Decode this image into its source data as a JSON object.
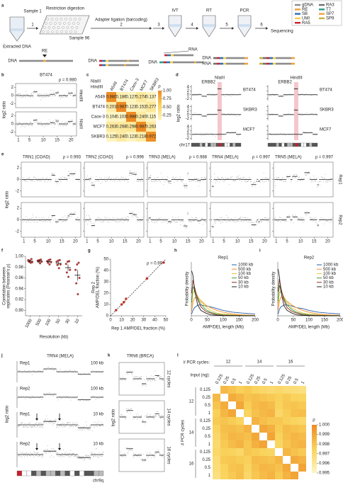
{
  "a": {
    "label": "a",
    "sample1": "Sample 1",
    "sample96": "Sample 96",
    "extracted": "Extracted DNA",
    "re": "RE",
    "dna": "DNA",
    "rna": "RNA",
    "steps": [
      {
        "num": "1",
        "name": "Restriction digestion"
      },
      {
        "num": "2",
        "name": "Adapter ligation (barcoding)"
      },
      {
        "num": "3",
        "name": "IVT"
      },
      {
        "num": "4",
        "name": "RT"
      },
      {
        "num": "5",
        "name": "PCR"
      },
      {
        "num": "6",
        "name": "Sequencing"
      }
    ],
    "legend": [
      {
        "name": "gDNA",
        "color": "#8c8c8c"
      },
      {
        "name": "RE",
        "color": "#e8a33a"
      },
      {
        "name": "SB",
        "color": "#2e6fb5"
      },
      {
        "name": "UMI",
        "color": "#f2d04b"
      },
      {
        "name": "RA5",
        "color": "#c8202e"
      },
      {
        "name": "RA3",
        "color": "#6f6f6f"
      },
      {
        "name": "T7",
        "color": "#2c9b8a"
      },
      {
        "name": "SP7",
        "color": "#f0a33c"
      },
      {
        "name": "SP9",
        "color": "#c4b23b"
      }
    ]
  },
  "b": {
    "label": "b",
    "title": "BT474",
    "rho": "ρ = 0.980",
    "rows": [
      "HindIII",
      "NlaIII"
    ],
    "ylabel": "log2 ratio",
    "xlim": [
      0,
      22
    ],
    "xticks": [
      1,
      5,
      10,
      15,
      20
    ],
    "ylim": [
      -3,
      3
    ],
    "yticks": [
      2,
      0,
      -2
    ]
  },
  "c": {
    "label": "c",
    "col_group": "NlaIII",
    "row_group": "HindIII",
    "names": [
      "A549",
      "BT474",
      "Caov-3",
      "MCF7",
      "SKBR3"
    ],
    "matrix": [
      [
        0.98,
        0.186,
        0.127,
        0.274,
        0.137
      ],
      [
        0.201,
        0.987,
        0.123,
        0.152,
        0.277
      ],
      [
        0.104,
        0.103,
        0.988,
        0.24,
        0.115
      ],
      [
        0.263,
        0.268,
        0.298,
        0.987,
        0.263
      ],
      [
        0.125,
        0.24,
        0.123,
        0.218,
        0.972
      ]
    ],
    "value_labels": [
      [
        "0.980",
        "0.186",
        "0.127",
        "0.274",
        "0.137"
      ],
      [
        "0.201",
        "0.987",
        "0.123",
        "0.152",
        "0.277"
      ],
      [
        "0.104",
        "0.103",
        "0.988",
        "0.240",
        "0.115"
      ],
      [
        "0.263",
        "0.268",
        "0.298",
        "0.987",
        "0.263"
      ],
      [
        "0.125",
        "0.240",
        "0.123",
        "0.218",
        "0.972"
      ]
    ],
    "clim": [
      0.1,
      1
    ],
    "cbar_ticks": [
      {
        "value": 1,
        "label": "1.00"
      },
      0.75,
      {
        "value": 0.5,
        "label": "0.50"
      },
      0.25
    ],
    "cbar_label": "ρ"
  },
  "d": {
    "label": "d",
    "gene": "ERBB2",
    "enzymes": [
      "NlaIII",
      "HindIII"
    ],
    "samples": [
      "BT474",
      "SKBR3",
      "MCF7"
    ],
    "ylabel": "log2 ratio",
    "chrom": "chr17",
    "ylim": [
      -3,
      5
    ],
    "yticks": [
      4,
      2,
      0,
      -2
    ]
  },
  "e": {
    "label": "e",
    "ylabel": "log2 ratio",
    "reps": [
      "Rep1",
      "Rep2"
    ],
    "panels": [
      {
        "title": "TRN1 (COAD)",
        "rho": "ρ = 0.993"
      },
      {
        "title": "TRN2 (COAD)",
        "rho": "ρ = 0.996"
      },
      {
        "title": "TRN3 (MELA)",
        "rho": "ρ = 0.988"
      },
      {
        "title": "TRN4 (MELA)",
        "rho": "ρ = 0.997"
      },
      {
        "title": "TRN5 (MELA)",
        "rho": "ρ = 0.997"
      }
    ],
    "xlim": [
      0,
      22
    ],
    "xticks": [
      1,
      5,
      10,
      15,
      20
    ],
    "ylim": [
      -3,
      3
    ],
    "yticks": [
      2,
      0,
      -2
    ]
  },
  "f": {
    "label": "f",
    "type": "dot",
    "ylabel": [
      "Correlation between",
      "replicates (Pearson's ρ)"
    ],
    "xlabel": "Resolution (kb)",
    "categories": [
      "1000",
      "500",
      "100",
      "50",
      "30",
      "10"
    ],
    "points": [
      [
        0.993,
        0.99,
        0.992,
        0.988,
        0.995,
        0.989
      ],
      [
        0.992,
        0.99,
        0.993,
        0.987,
        0.994,
        0.99
      ],
      [
        0.991,
        0.988,
        0.993,
        0.985,
        0.994,
        0.989
      ],
      [
        0.99,
        0.984,
        0.992,
        0.978,
        0.993,
        0.985
      ],
      [
        0.986,
        0.97,
        0.99,
        0.962,
        0.991,
        0.975
      ],
      [
        0.975,
        0.95,
        0.985,
        0.93,
        0.988,
        0.96
      ]
    ],
    "means": [
      0.991,
      0.991,
      0.99,
      0.987,
      0.979,
      0.965
    ],
    "errors": [
      0.002,
      0.002,
      0.002,
      0.003,
      0.006,
      0.01
    ],
    "ylim": [
      0.89,
      1.0
    ],
    "yticks": [
      {
        "value": 0.9,
        "label": "0.90"
      },
      0.92,
      0.94,
      0.96,
      0.98,
      {
        "value": 1,
        "label": "1.00"
      }
    ],
    "color": "#9b1b1b"
  },
  "g": {
    "label": "g",
    "type": "scatter",
    "xlabel": "Rep 1 AMP/DEL fraction (%)",
    "ylabel": [
      "Rep 2",
      "AMP/DEL fraction (%)"
    ],
    "annotation": "ρ = 0.99",
    "x": [
      5,
      10,
      12,
      14,
      33,
      48
    ],
    "values": [
      5,
      10,
      12,
      15,
      33,
      47
    ],
    "xlim": [
      0,
      50
    ],
    "ylim": [
      0,
      50
    ],
    "xticks": [
      0,
      10,
      20,
      30,
      40,
      50
    ],
    "yticks": [
      0,
      10,
      20,
      30,
      40,
      50
    ],
    "color": "#c0392b"
  },
  "h": {
    "label": "h",
    "type": "line",
    "title": "Rep1",
    "xlabel": "AMP/DEL length (Mb)",
    "ylabel": "Probability density",
    "x": [
      1,
      5,
      10,
      20,
      30,
      45,
      60,
      80,
      100,
      130,
      160,
      200
    ],
    "xlim": [
      0,
      200
    ],
    "xticks": [
      0,
      50,
      100,
      150,
      200
    ],
    "ylim": [
      0,
      0.06
    ],
    "series": [
      {
        "name": "1000 kb",
        "color": "#2a5caa",
        "values": [
          0.002,
          0.006,
          0.009,
          0.012,
          0.012,
          0.011,
          0.01,
          0.008,
          0.006,
          0.004,
          0.003,
          0.002
        ]
      },
      {
        "name": "500 kb",
        "color": "#f28e2b",
        "values": [
          0.005,
          0.015,
          0.02,
          0.02,
          0.017,
          0.012,
          0.009,
          0.006,
          0.004,
          0.002,
          0.001,
          0.0005
        ]
      },
      {
        "name": "100 kb",
        "color": "#e9c232",
        "values": [
          0.01,
          0.025,
          0.028,
          0.022,
          0.016,
          0.01,
          0.006,
          0.003,
          0.002,
          0.001,
          0.0005,
          0.0002
        ]
      },
      {
        "name": "50 kb",
        "color": "#3f9b3f",
        "values": [
          0.015,
          0.032,
          0.03,
          0.02,
          0.013,
          0.007,
          0.004,
          0.002,
          0.001,
          0.0005,
          0.0002,
          0.0001
        ]
      },
      {
        "name": "30 kb",
        "color": "#8b2a1a",
        "values": [
          0.025,
          0.04,
          0.032,
          0.018,
          0.01,
          0.005,
          0.003,
          0.001,
          0.0005,
          0.0002,
          0.0001,
          0
        ]
      },
      {
        "name": "10 kb",
        "color": "#222222",
        "values": [
          0.05,
          0.045,
          0.028,
          0.012,
          0.006,
          0.003,
          0.001,
          0.0005,
          0.0002,
          0.0001,
          0,
          0
        ]
      }
    ]
  },
  "i": {
    "label": "i",
    "type": "line",
    "title": "Rep2",
    "xlabel": "AMP/DEL length (Mb)",
    "ylabel": "Probability density",
    "x": [
      1,
      5,
      10,
      20,
      30,
      45,
      60,
      80,
      100,
      130,
      160,
      200
    ],
    "xlim": [
      0,
      200
    ],
    "xticks": [
      0,
      50,
      100,
      150,
      200
    ],
    "ylim": [
      0,
      0.06
    ],
    "series": [
      {
        "name": "1000 kb",
        "color": "#2a5caa",
        "values": [
          0.002,
          0.007,
          0.01,
          0.012,
          0.012,
          0.011,
          0.009,
          0.008,
          0.006,
          0.004,
          0.003,
          0.002
        ]
      },
      {
        "name": "500 kb",
        "color": "#f28e2b",
        "values": [
          0.006,
          0.016,
          0.021,
          0.019,
          0.016,
          0.012,
          0.009,
          0.006,
          0.004,
          0.002,
          0.001,
          0.0005
        ]
      },
      {
        "name": "100 kb",
        "color": "#e9c232",
        "values": [
          0.011,
          0.026,
          0.027,
          0.021,
          0.015,
          0.009,
          0.006,
          0.003,
          0.002,
          0.001,
          0.0005,
          0.0002
        ]
      },
      {
        "name": "50 kb",
        "color": "#3f9b3f",
        "values": [
          0.016,
          0.034,
          0.029,
          0.019,
          0.012,
          0.007,
          0.004,
          0.002,
          0.001,
          0.0005,
          0.0002,
          0.0001
        ]
      },
      {
        "name": "30 kb",
        "color": "#8b2a1a",
        "values": [
          0.027,
          0.041,
          0.031,
          0.017,
          0.009,
          0.005,
          0.003,
          0.001,
          0.0005,
          0.0002,
          0.0001,
          0
        ]
      },
      {
        "name": "10 kb",
        "color": "#222222",
        "values": [
          0.052,
          0.044,
          0.027,
          0.011,
          0.006,
          0.003,
          0.001,
          0.0005,
          0.0002,
          0.0001,
          0,
          0
        ]
      }
    ]
  },
  "j": {
    "label": "j",
    "title": "TRN4 (MELA)",
    "ylabel": "log2 ratio",
    "tracks": [
      {
        "rep": "Rep1",
        "res": "100 kb"
      },
      {
        "rep": "Rep2",
        "res": "100 kb"
      },
      {
        "rep": "Rep1",
        "res": "10 kb"
      },
      {
        "rep": "Rep2",
        "res": "10 kb"
      }
    ],
    "chrom": "chr9q"
  },
  "k": {
    "label": "k",
    "title": "TRN6 (BRCA)",
    "ylabel": "log2 ratio",
    "tracks": [
      "12 cycles",
      "14 cycles",
      "16 cycles"
    ]
  },
  "l": {
    "label": "l",
    "cycles_label": "# PCR cycles:",
    "input_label": "Input (ng):",
    "row_label": "# PCR cycles",
    "cycles": [
      "12",
      "14",
      "16"
    ],
    "inputs": [
      "0.125",
      "0.25",
      "0.5",
      "1"
    ],
    "matrix": [
      [
        null,
        0.9984,
        0.998,
        0.9976,
        0.9978,
        0.9974,
        0.9972,
        0.997,
        0.9972,
        0.9969,
        0.9968,
        0.9966
      ],
      [
        0.9984,
        null,
        0.9988,
        0.9985,
        0.998,
        0.9982,
        0.998,
        0.9978,
        0.9976,
        0.9978,
        0.9975,
        0.9974
      ],
      [
        0.998,
        0.9988,
        null,
        0.999,
        0.9977,
        0.9983,
        0.9985,
        0.9983,
        0.9975,
        0.9979,
        0.998,
        0.9978
      ],
      [
        0.9976,
        0.9985,
        0.999,
        null,
        0.9974,
        0.9981,
        0.9984,
        0.9986,
        0.9972,
        0.9977,
        0.9981,
        0.9982
      ],
      [
        0.9978,
        0.998,
        0.9977,
        0.9974,
        null,
        0.9986,
        0.9982,
        0.9979,
        0.9979,
        0.9976,
        0.9974,
        0.9972
      ],
      [
        0.9974,
        0.9982,
        0.9983,
        0.9981,
        0.9986,
        null,
        0.999,
        0.9987,
        0.9977,
        0.9983,
        0.9981,
        0.9979
      ],
      [
        0.9972,
        0.998,
        0.9985,
        0.9984,
        0.9982,
        0.999,
        null,
        0.9991,
        0.9975,
        0.9982,
        0.9985,
        0.9983
      ],
      [
        0.997,
        0.9978,
        0.9983,
        0.9986,
        0.9979,
        0.9987,
        0.9991,
        null,
        0.9973,
        0.998,
        0.9984,
        0.9986
      ],
      [
        0.9972,
        0.9976,
        0.9975,
        0.9972,
        0.9979,
        0.9977,
        0.9975,
        0.9973,
        null,
        0.9985,
        0.9981,
        0.9978
      ],
      [
        0.9969,
        0.9978,
        0.9979,
        0.9977,
        0.9976,
        0.9983,
        0.9982,
        0.998,
        0.9985,
        null,
        0.9989,
        0.9986
      ],
      [
        0.9968,
        0.9975,
        0.998,
        0.9981,
        0.9974,
        0.9981,
        0.9985,
        0.9984,
        0.9981,
        0.9989,
        null,
        0.9991
      ],
      [
        0.9966,
        0.9974,
        0.9978,
        0.9982,
        0.9972,
        0.9979,
        0.9983,
        0.9986,
        0.9978,
        0.9986,
        0.9991,
        null
      ]
    ],
    "clim": [
      0.995,
      1.0
    ],
    "cbar_ticks": [
      {
        "value": 1,
        "label": "1.000"
      },
      0.999,
      0.998,
      0.997,
      0.996,
      0.995
    ],
    "cbar_label": "ρ"
  }
}
